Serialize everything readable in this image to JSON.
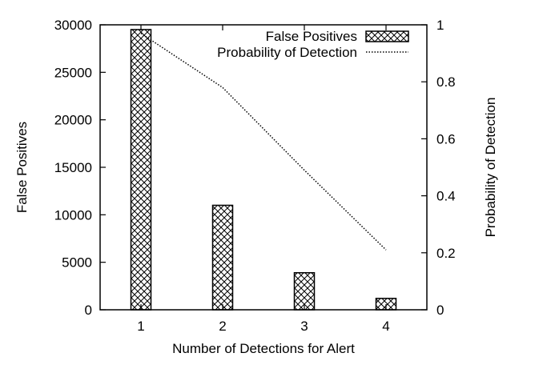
{
  "chart_data": {
    "type": "bar",
    "categories": [
      "1",
      "2",
      "3",
      "4"
    ],
    "xlabel": "Number of Detections for Alert",
    "ylabel_left": "False Positives",
    "ylabel_right": "Probability of Detection",
    "y_left_lim": [
      0,
      30000
    ],
    "y_right_lim": [
      0,
      1
    ],
    "y_left_ticks": [
      0,
      5000,
      10000,
      15000,
      20000,
      25000,
      30000
    ],
    "y_right_ticks": [
      0,
      0.2,
      0.4,
      0.6,
      0.8,
      1
    ],
    "grid": false,
    "legend_position": "top-right",
    "series": [
      {
        "name": "False Positives",
        "type": "bar",
        "axis": "left",
        "pattern": "crosshatch",
        "values": [
          29500,
          11000,
          3900,
          1200
        ]
      },
      {
        "name": "Probability of Detection",
        "type": "line",
        "axis": "right",
        "style": "dotted",
        "values": [
          0.97,
          0.78,
          0.49,
          0.21
        ]
      }
    ]
  }
}
